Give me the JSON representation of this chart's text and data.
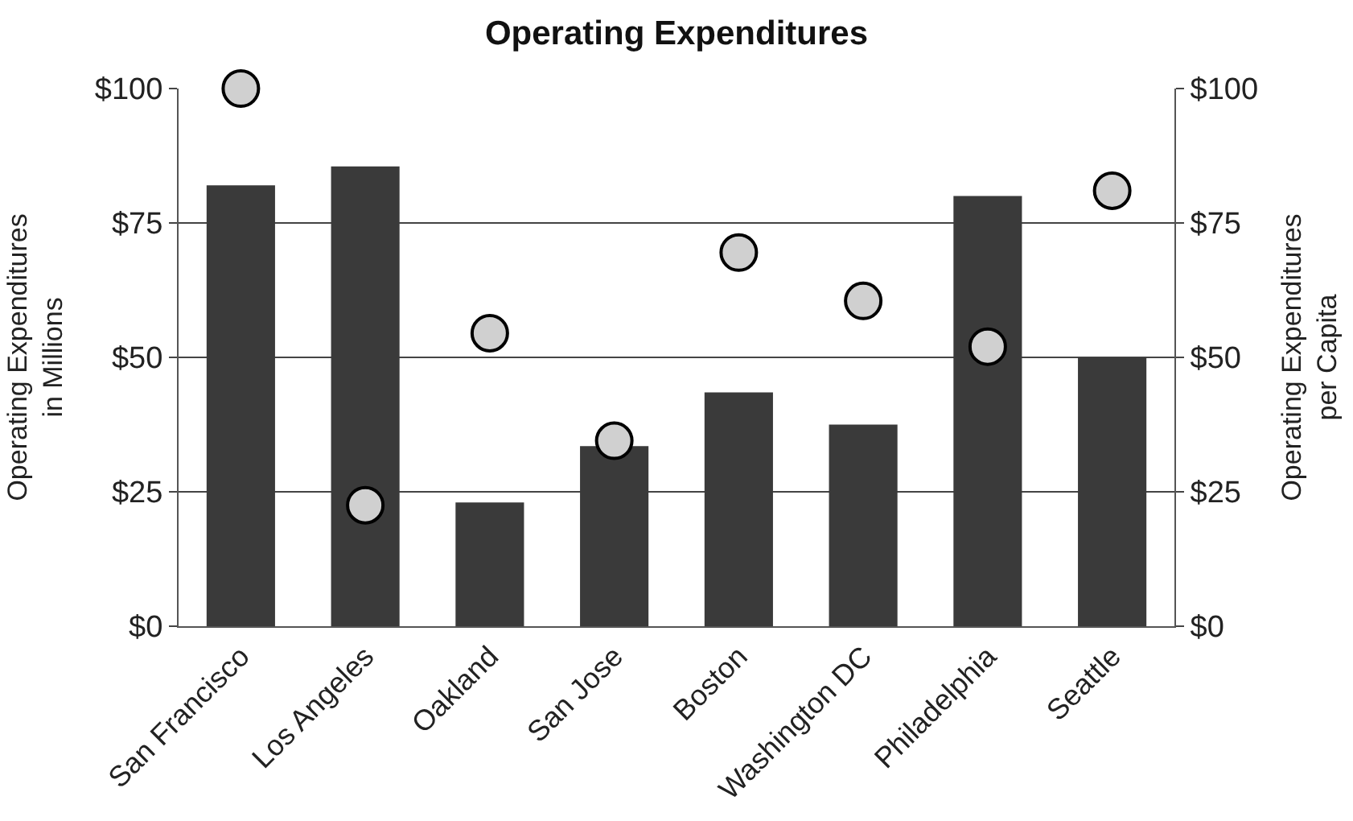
{
  "chart_data": {
    "type": "bar",
    "title": "Operating Expenditures",
    "categories": [
      "San Francisco",
      "Los Angeles",
      "Oakland",
      "San Jose",
      "Boston",
      "Washington DC",
      "Philadelphia",
      "Seattle"
    ],
    "series": [
      {
        "color": "#3a3a3a",
        "values": [
          82,
          85.5,
          23,
          33.5,
          43.5,
          37.5,
          80,
          50
        ]
      },
      {
        "type": "scatter",
        "axis": "y2",
        "color": "#d0d0d0",
        "marker": "circle",
        "values": [
          100,
          22.5,
          54.5,
          34.5,
          69.5,
          60.5,
          52,
          81
        ]
      }
    ],
    "ylabel": "Operating Expenditures\nin Millions",
    "y2label": "Operating Expenditures\nper Capita",
    "ylim": [
      0,
      100
    ],
    "yticks": [
      {
        "value": 0,
        "label": "$0"
      },
      {
        "value": 25,
        "label": "$25"
      },
      {
        "value": 50,
        "label": "$50"
      },
      {
        "value": 75,
        "label": "$75"
      },
      {
        "value": 100,
        "label": "$100"
      }
    ],
    "y2lim": [
      0,
      100
    ],
    "y2ticks": [
      {
        "value": 0,
        "label": "$0"
      },
      {
        "value": 25,
        "label": "$25"
      },
      {
        "value": 50,
        "label": "$50"
      },
      {
        "value": 75,
        "label": "$75"
      },
      {
        "value": 100,
        "label": "$100"
      }
    ],
    "grid": "y"
  }
}
